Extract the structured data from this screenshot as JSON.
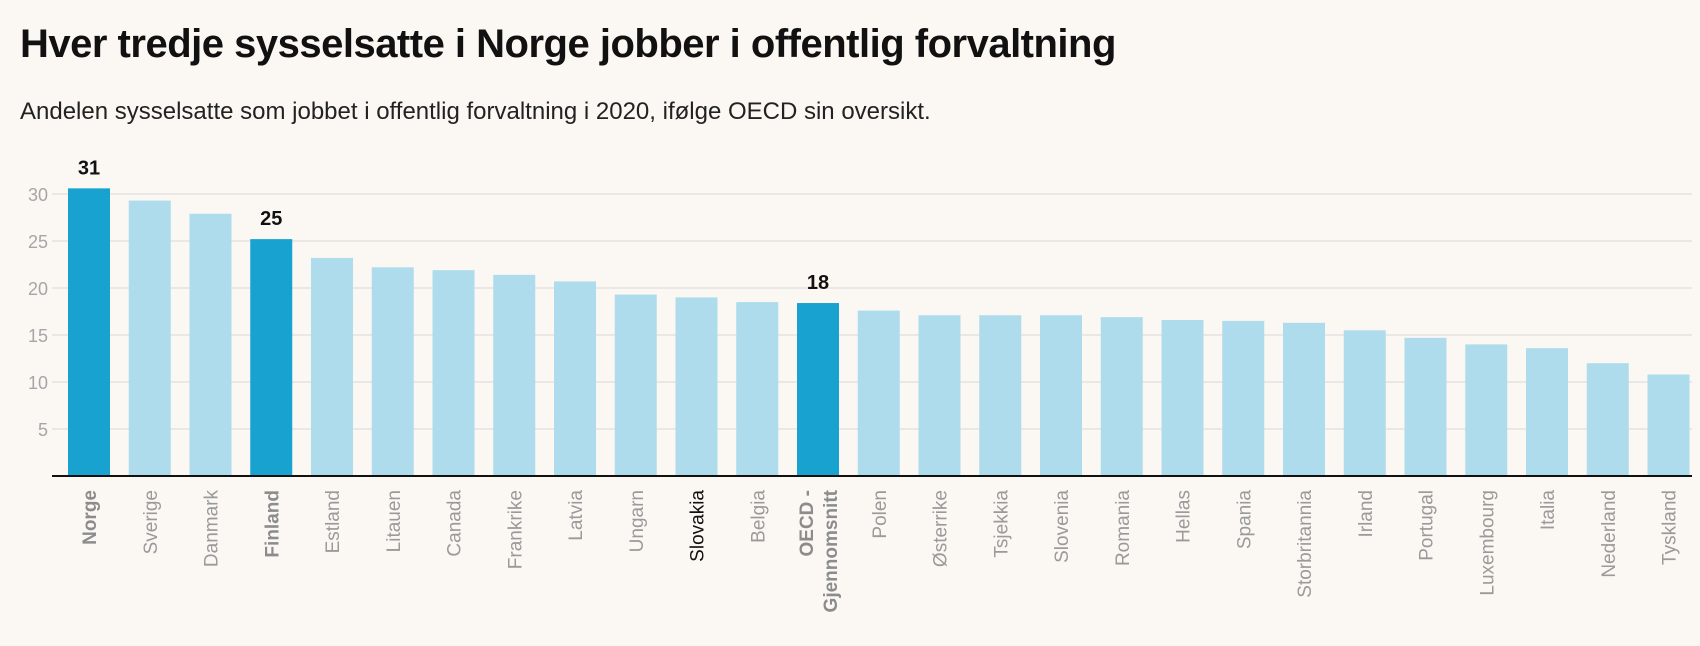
{
  "title": "Hver tredje sysselsatte i Norge jobber i offentlig forvaltning",
  "subtitle": "Andelen sysselsatte som jobbet i offentlig forvaltning i 2020, ifølge OECD sin oversikt.",
  "colors": {
    "highlight": "#17a2cf",
    "normal": "#aedcec",
    "grid": "#e3e3e3",
    "axis": "#111111",
    "background": "#fbf8f3"
  },
  "chart_data": {
    "type": "bar",
    "title": "Hver tredje sysselsatte i Norge jobber i offentlig forvaltning",
    "subtitle": "Andelen sysselsatte som jobbet i offentlig forvaltning i 2020, ifølge OECD sin oversikt.",
    "categories": [
      "Norge",
      "Sverige",
      "Danmark",
      "Finland",
      "Estland",
      "Litauen",
      "Canada",
      "Frankrike",
      "Latvia",
      "Ungarn",
      "Slovakia",
      "Belgia",
      "OECD - Gjennomsnitt",
      "Polen",
      "Østerrike",
      "Tsjekkia",
      "Slovenia",
      "Romania",
      "Hellas",
      "Spania",
      "Storbritannia",
      "Irland",
      "Portugal",
      "Luxembourg",
      "Italia",
      "Nederland",
      "Tyskland"
    ],
    "values": [
      30.6,
      29.3,
      27.9,
      25.2,
      23.2,
      22.2,
      21.9,
      21.4,
      20.7,
      19.3,
      19.0,
      18.5,
      18.4,
      17.6,
      17.1,
      17.1,
      17.1,
      16.9,
      16.6,
      16.5,
      16.3,
      15.5,
      14.7,
      14.0,
      13.6,
      12.0,
      10.8
    ],
    "highlighted": [
      "Norge",
      "Finland",
      "OECD - Gjennomsnitt"
    ],
    "data_labels": {
      "Norge": "31",
      "Finland": "25",
      "OECD - Gjennomsnitt": "18"
    },
    "category_label_lines": {
      "OECD - Gjennomsnitt": [
        "OECD -",
        "Gjennomsnitt"
      ]
    },
    "dark_labels": [
      "Slovakia"
    ],
    "yticks": [
      "5",
      "10",
      "15",
      "20",
      "25",
      "30"
    ],
    "ylim": [
      0,
      31
    ],
    "xlabel": "",
    "ylabel": "",
    "grid": true
  }
}
